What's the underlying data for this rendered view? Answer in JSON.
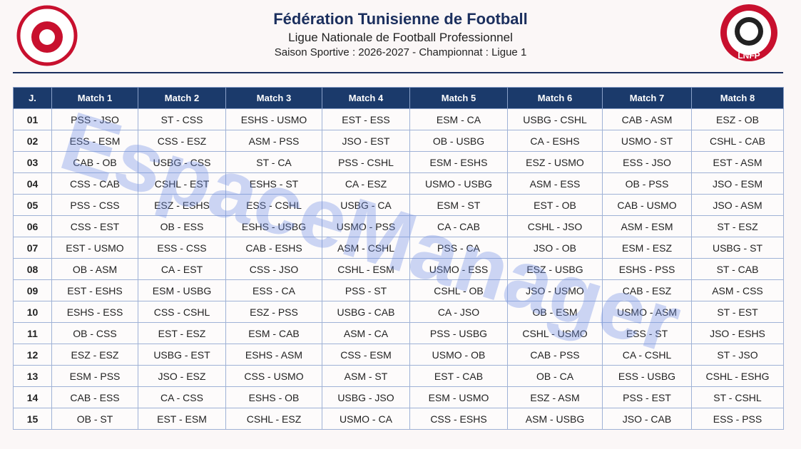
{
  "header": {
    "title": "Fédération Tunisienne de Football",
    "subtitle": "Ligue Nationale de Football Professionnel",
    "season": "Saison Sportive : 2026-2027 - Championnat : Ligue 1",
    "right_logo": "LNFP"
  },
  "watermark": "EspaceManager",
  "table": {
    "columns": [
      "J.",
      "Match 1",
      "Match 2",
      "Match 3",
      "Match 4",
      "Match 5",
      "Match 6",
      "Match 7",
      "Match 8"
    ],
    "rows": [
      [
        "01",
        "PSS - JSO",
        "ST - CSS",
        "ESHS - USMO",
        "EST - ESS",
        "ESM - CA",
        "USBG - CSHL",
        "CAB - ASM",
        "ESZ - OB"
      ],
      [
        "02",
        "ESS - ESM",
        "CSS - ESZ",
        "ASM - PSS",
        "JSO - EST",
        "OB - USBG",
        "CA - ESHS",
        "USMO - ST",
        "CSHL - CAB"
      ],
      [
        "03",
        "CAB - OB",
        "USBG - CSS",
        "ST - CA",
        "PSS - CSHL",
        "ESM - ESHS",
        "ESZ - USMO",
        "ESS - JSO",
        "EST - ASM"
      ],
      [
        "04",
        "CSS - CAB",
        "CSHL - EST",
        "ESHS - ST",
        "CA - ESZ",
        "USMO - USBG",
        "ASM - ESS",
        "OB - PSS",
        "JSO - ESM"
      ],
      [
        "05",
        "PSS - CSS",
        "ESZ - ESHS",
        "ESS - CSHL",
        "USBG - CA",
        "ESM - ST",
        "EST - OB",
        "CAB - USMO",
        "JSO - ASM"
      ],
      [
        "06",
        "CSS - EST",
        "OB - ESS",
        "ESHS - USBG",
        "USMO - PSS",
        "CA - CAB",
        "CSHL - JSO",
        "ASM - ESM",
        "ST - ESZ"
      ],
      [
        "07",
        "EST - USMO",
        "ESS - CSS",
        "CAB - ESHS",
        "ASM - CSHL",
        "PSS - CA",
        "JSO - OB",
        "ESM - ESZ",
        "USBG - ST"
      ],
      [
        "08",
        "OB - ASM",
        "CA - EST",
        "CSS - JSO",
        "CSHL - ESM",
        "USMO - ESS",
        "ESZ - USBG",
        "ESHS - PSS",
        "ST - CAB"
      ],
      [
        "09",
        "EST - ESHS",
        "ESM - USBG",
        "ESS - CA",
        "PSS - ST",
        "CSHL - OB",
        "JSO - USMO",
        "CAB - ESZ",
        "ASM - CSS"
      ],
      [
        "10",
        "ESHS - ESS",
        "CSS - CSHL",
        "ESZ - PSS",
        "USBG - CAB",
        "CA - JSO",
        "OB - ESM",
        "USMO - ASM",
        "ST - EST"
      ],
      [
        "11",
        "OB - CSS",
        "EST - ESZ",
        "ESM - CAB",
        "ASM - CA",
        "PSS - USBG",
        "CSHL - USMO",
        "ESS - ST",
        "JSO - ESHS"
      ],
      [
        "12",
        "ESZ - ESZ",
        "USBG - EST",
        "ESHS - ASM",
        "CSS - ESM",
        "USMO - OB",
        "CAB - PSS",
        "CA - CSHL",
        "ST - JSO"
      ],
      [
        "13",
        "ESM - PSS",
        "JSO - ESZ",
        "CSS - USMO",
        "ASM - ST",
        "EST - CAB",
        "OB - CA",
        "ESS - USBG",
        "CSHL - ESHG"
      ],
      [
        "14",
        "CAB - ESS",
        "CA - CSS",
        "ESHS - OB",
        "USBG - JSO",
        "ESM - USMO",
        "ESZ - ASM",
        "PSS - EST",
        "ST - CSHL"
      ],
      [
        "15",
        "OB - ST",
        "EST - ESM",
        "CSHL - ESZ",
        "USMO - CA",
        "CSS - ESHS",
        "ASM - USBG",
        "JSO - CAB",
        "ESS - PSS"
      ]
    ]
  }
}
